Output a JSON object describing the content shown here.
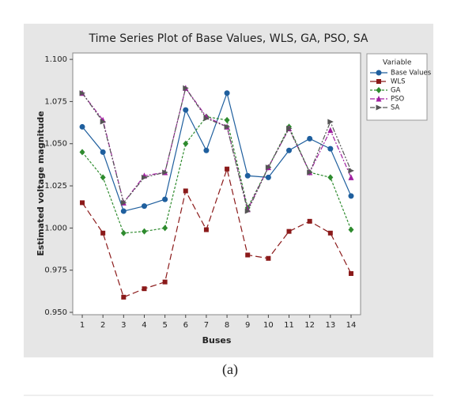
{
  "chart_data": {
    "type": "line",
    "title": "Time Series Plot of Base Values, WLS, GA, PSO, SA",
    "xlabel": "Buses",
    "ylabel": "Estimated voltage magnitude",
    "legend_title": "Variable",
    "x": [
      1,
      2,
      3,
      4,
      5,
      6,
      7,
      8,
      9,
      10,
      11,
      12,
      13,
      14
    ],
    "xlim": [
      0.54,
      14.46
    ],
    "xticks": [
      1,
      2,
      3,
      4,
      5,
      6,
      7,
      8,
      9,
      10,
      11,
      12,
      13,
      14
    ],
    "ylim": [
      0.9486,
      1.1038
    ],
    "yticks": [
      {
        "value": 0.95,
        "label": "0.950"
      },
      {
        "value": 0.975,
        "label": "0.975"
      },
      {
        "value": 1,
        "label": "1.000"
      },
      {
        "value": 1.025,
        "label": "1.025"
      },
      {
        "value": 1.05,
        "label": "1.050"
      },
      {
        "value": 1.075,
        "label": "1.075"
      },
      {
        "value": 1.1,
        "label": "1.100"
      }
    ],
    "grid": false,
    "legend": "right",
    "series": [
      {
        "name": "Base Values",
        "color": "#1f5f9e",
        "marker": "circle",
        "dash": "none",
        "values": [
          1.06,
          1.045,
          1.01,
          1.013,
          1.017,
          1.07,
          1.046,
          1.08,
          1.031,
          1.03,
          1.046,
          1.053,
          1.047,
          1.019
        ]
      },
      {
        "name": "WLS",
        "color": "#8b1a1a",
        "marker": "square",
        "dash": "8 4",
        "values": [
          1.015,
          0.997,
          0.959,
          0.964,
          0.968,
          1.022,
          0.999,
          1.035,
          0.984,
          0.982,
          0.998,
          1.004,
          0.997,
          0.973
        ]
      },
      {
        "name": "GA",
        "color": "#2e8b2e",
        "marker": "diamond",
        "dash": "3 2",
        "values": [
          1.045,
          1.03,
          0.997,
          0.998,
          1.0,
          1.05,
          1.066,
          1.064,
          1.012,
          1.036,
          1.06,
          1.033,
          1.03,
          0.999
        ]
      },
      {
        "name": "PSO",
        "color": "#a020a0",
        "marker": "triangle",
        "dash": "6 2 2 2",
        "values": [
          1.08,
          1.064,
          1.015,
          1.031,
          1.033,
          1.083,
          1.066,
          1.06,
          1.011,
          1.036,
          1.059,
          1.033,
          1.058,
          1.03
        ]
      },
      {
        "name": "SA",
        "color": "#555555",
        "marker": "right",
        "dash": "6 2 2 2 2 2",
        "values": [
          1.08,
          1.063,
          1.015,
          1.03,
          1.033,
          1.083,
          1.065,
          1.06,
          1.01,
          1.036,
          1.059,
          1.033,
          1.063,
          1.034
        ]
      }
    ]
  },
  "caption": "(a)"
}
